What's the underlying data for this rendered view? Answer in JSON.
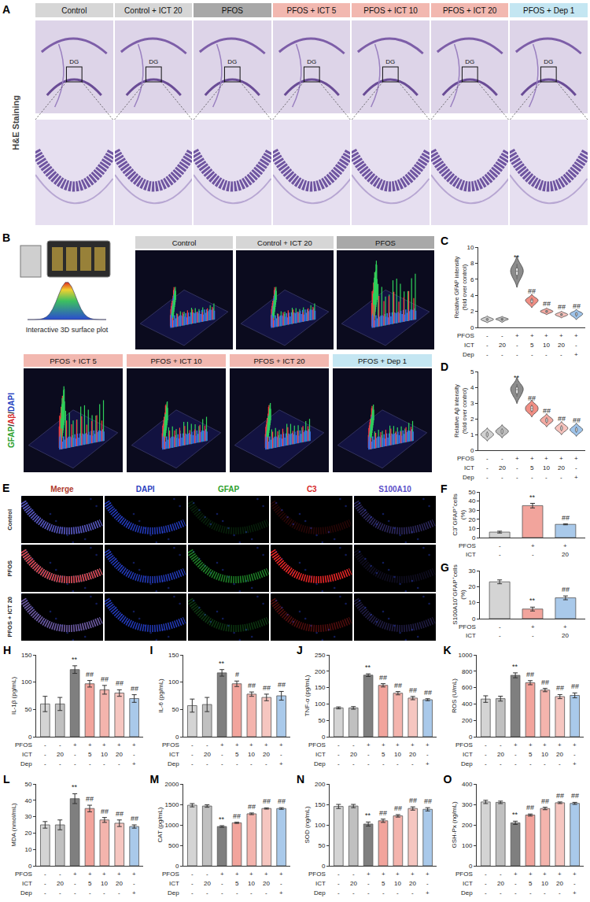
{
  "figure_A": {
    "panel": "A",
    "row_label": "H&E Staining",
    "region_label": "DG",
    "groups": [
      {
        "label": "Control",
        "color": "#d6d6d6"
      },
      {
        "label": "Control + ICT 20",
        "color": "#d6d6d6"
      },
      {
        "label": "PFOS",
        "color": "#a8a8a8"
      },
      {
        "label": "PFOS + ICT 5",
        "color": "#f2b8b0"
      },
      {
        "label": "PFOS + ICT 10",
        "color": "#f2b8b0"
      },
      {
        "label": "PFOS + ICT 20",
        "color": "#f2b8b0"
      },
      {
        "label": "PFOS + Dep 1",
        "color": "#c4e6f2"
      }
    ]
  },
  "figure_B": {
    "panel": "B",
    "icon_label": "Interactive 3D surface plot",
    "stain_label": "GFAP/Aβ/DAPI",
    "stain_colors": [
      "#2ca02c",
      "#d62728",
      "#1f3fbf"
    ],
    "groups": [
      {
        "label": "Control",
        "color": "#d6d6d6"
      },
      {
        "label": "Control + ICT 20",
        "color": "#d6d6d6"
      },
      {
        "label": "PFOS",
        "color": "#a8a8a8"
      },
      {
        "label": "PFOS + ICT 5",
        "color": "#f2b8b0"
      },
      {
        "label": "PFOS + ICT 10",
        "color": "#f2b8b0"
      },
      {
        "label": "PFOS + ICT 20",
        "color": "#f2b8b0"
      },
      {
        "label": "PFOS + Dep 1",
        "color": "#c4e6f2"
      }
    ]
  },
  "figure_E": {
    "panel": "E",
    "channels": [
      {
        "label": "Merge",
        "color": "#b03a2e"
      },
      {
        "label": "DAPI",
        "color": "#2b3fbf"
      },
      {
        "label": "GFAP",
        "color": "#2ca02c"
      },
      {
        "label": "C3",
        "color": "#d62728"
      },
      {
        "label": "S100A10",
        "color": "#5b4fc9"
      }
    ],
    "rows": [
      "Control",
      "PFOS",
      "PFOS + ICT 20"
    ]
  },
  "chart_data": [
    {
      "panel": "C",
      "type": "violin",
      "ylabel": "Relative GFAP intensity (fold over control)",
      "ylim": [
        0,
        10
      ],
      "yticks": [
        0,
        2,
        4,
        6,
        8,
        10
      ],
      "tick_labels": "y",
      "samples": [
        [
          0.8,
          0.9,
          1.0,
          1.0,
          1.1,
          1.2
        ],
        [
          0.8,
          0.95,
          1.0,
          1.05,
          1.1,
          1.2
        ],
        [
          6.0,
          6.5,
          6.9,
          7.1,
          7.4,
          7.9
        ],
        [
          2.9,
          3.1,
          3.3,
          3.4,
          3.5,
          3.7
        ],
        [
          1.8,
          1.9,
          2.0,
          2.0,
          2.1,
          2.2
        ],
        [
          1.4,
          1.5,
          1.6,
          1.6,
          1.7,
          1.8
        ],
        [
          1.3,
          1.5,
          1.6,
          1.7,
          1.8,
          1.9
        ]
      ],
      "colors": [
        "#d0d0d0",
        "#bdbdbd",
        "#8c8c8c",
        "#f08e84",
        "#f4aaa2",
        "#f7c3bd",
        "#9fc4ea"
      ],
      "significance": [
        null,
        null,
        "**",
        "##",
        "##",
        "##",
        "##"
      ],
      "conditions": [
        {
          "name": "PFOS",
          "values": [
            "-",
            "-",
            "+",
            "+",
            "+",
            "+",
            "+"
          ]
        },
        {
          "name": "ICT",
          "values": [
            "-",
            "20",
            "-",
            "5",
            "10",
            "20",
            "-"
          ]
        },
        {
          "name": "Dep",
          "values": [
            "-",
            "-",
            "-",
            "-",
            "-",
            "-",
            "+"
          ]
        }
      ]
    },
    {
      "panel": "D",
      "type": "violin",
      "ylabel": "Relative Aβ intensity (fold over control)",
      "ylim": [
        0,
        5
      ],
      "yticks": [
        0,
        1,
        2,
        3,
        4,
        5
      ],
      "tick_labels": "y",
      "samples": [
        [
          0.8,
          0.9,
          1.0,
          1.0,
          1.1,
          1.2
        ],
        [
          1.0,
          1.1,
          1.2,
          1.2,
          1.3,
          1.4
        ],
        [
          3.4,
          3.6,
          3.8,
          3.9,
          4.0,
          4.2
        ],
        [
          2.4,
          2.5,
          2.6,
          2.7,
          2.8,
          2.9
        ],
        [
          1.7,
          1.8,
          1.9,
          1.9,
          2.0,
          2.1
        ],
        [
          1.2,
          1.3,
          1.4,
          1.4,
          1.5,
          1.6
        ],
        [
          1.1,
          1.2,
          1.3,
          1.3,
          1.4,
          1.5
        ]
      ],
      "colors": [
        "#d0d0d0",
        "#bdbdbd",
        "#8c8c8c",
        "#f08e84",
        "#f4aaa2",
        "#f7c3bd",
        "#9fc4ea"
      ],
      "significance": [
        null,
        null,
        "**",
        "##",
        "##",
        "##",
        "##"
      ],
      "conditions": [
        {
          "name": "PFOS",
          "values": [
            "-",
            "-",
            "+",
            "+",
            "+",
            "+",
            "+"
          ]
        },
        {
          "name": "ICT",
          "values": [
            "-",
            "20",
            "-",
            "5",
            "10",
            "20",
            "-"
          ]
        },
        {
          "name": "Dep",
          "values": [
            "-",
            "-",
            "-",
            "-",
            "-",
            "-",
            "+"
          ]
        }
      ]
    },
    {
      "panel": "F",
      "type": "bar",
      "ylabel": "C3⁺GFAP⁺cells (%)",
      "ylim": [
        0,
        50
      ],
      "yticks": [
        0,
        10,
        20,
        30,
        40,
        50
      ],
      "tick_labels": "y",
      "values": [
        6,
        35,
        14.5
      ],
      "errors": [
        1,
        2.5,
        0.5
      ],
      "colors": [
        "#d4d4d4",
        "#f2a49c",
        "#a9c9ea"
      ],
      "significance": [
        null,
        "**",
        "##"
      ],
      "conditions": [
        {
          "name": "PFOS",
          "values": [
            "-",
            "+",
            "+"
          ]
        },
        {
          "name": "ICT",
          "values": [
            "-",
            "-",
            "20"
          ]
        }
      ]
    },
    {
      "panel": "G",
      "type": "bar",
      "ylabel": "S100A10⁺GFAP⁺cells (%)",
      "ylim": [
        0,
        30
      ],
      "yticks": [
        0,
        10,
        20,
        30
      ],
      "tick_labels": "y",
      "values": [
        23,
        6,
        13
      ],
      "errors": [
        1.2,
        1.2,
        1.2
      ],
      "colors": [
        "#d4d4d4",
        "#f2a49c",
        "#a9c9ea"
      ],
      "significance": [
        null,
        "**",
        "##"
      ],
      "conditions": [
        {
          "name": "PFOS",
          "values": [
            "-",
            "+",
            "+"
          ]
        },
        {
          "name": "ICT",
          "values": [
            "-",
            "-",
            "20"
          ]
        }
      ]
    },
    {
      "panel": "H",
      "type": "bar",
      "ylabel": "IL-1β (pg/mL)",
      "ylim": [
        0,
        150
      ],
      "yticks": [
        0,
        50,
        100,
        150
      ],
      "tick_labels": "y",
      "values": [
        60,
        60,
        123,
        97,
        86,
        80,
        70
      ],
      "errors": [
        14,
        12,
        7,
        6,
        8,
        6,
        7
      ],
      "colors": [
        "#d4d4d4",
        "#c0c0c0",
        "#7f7f7f",
        "#f2a49c",
        "#f4b4ad",
        "#f6c6c0",
        "#a9c9ea"
      ],
      "significance": [
        null,
        null,
        "**",
        "##",
        "##",
        "##",
        "##"
      ],
      "conditions": [
        {
          "name": "PFOS",
          "values": [
            "-",
            "-",
            "+",
            "+",
            "+",
            "+",
            "+"
          ]
        },
        {
          "name": "ICT",
          "values": [
            "-",
            "20",
            "-",
            "5",
            "10",
            "20",
            "-"
          ]
        },
        {
          "name": "Dep",
          "values": [
            "-",
            "-",
            "-",
            "-",
            "-",
            "-",
            "+"
          ]
        }
      ]
    },
    {
      "panel": "I",
      "type": "bar",
      "ylabel": "IL-6 (pg/mL)",
      "ylim": [
        0,
        150
      ],
      "yticks": [
        0,
        50,
        100,
        150
      ],
      "tick_labels": "y",
      "values": [
        57,
        59,
        117,
        97,
        78,
        72,
        75
      ],
      "errors": [
        12,
        13,
        6,
        5,
        4,
        6,
        8
      ],
      "colors": [
        "#d4d4d4",
        "#c0c0c0",
        "#7f7f7f",
        "#f2a49c",
        "#f4b4ad",
        "#f6c6c0",
        "#a9c9ea"
      ],
      "significance": [
        null,
        null,
        "**",
        "#",
        "##",
        "##",
        "##"
      ],
      "conditions": [
        {
          "name": "PFOS",
          "values": [
            "-",
            "-",
            "+",
            "+",
            "+",
            "+",
            "+"
          ]
        },
        {
          "name": "ICT",
          "values": [
            "-",
            "20",
            "-",
            "5",
            "10",
            "20",
            "-"
          ]
        },
        {
          "name": "Dep",
          "values": [
            "-",
            "-",
            "-",
            "-",
            "-",
            "-",
            "+"
          ]
        }
      ]
    },
    {
      "panel": "J",
      "type": "bar",
      "ylabel": "TNF-α (pg/mL)",
      "ylim": [
        0,
        250
      ],
      "yticks": [
        0,
        50,
        100,
        150,
        200,
        250
      ],
      "tick_labels": "y",
      "values": [
        88,
        88,
        188,
        157,
        133,
        118,
        113
      ],
      "errors": [
        3,
        4,
        4,
        5,
        5,
        5,
        3
      ],
      "colors": [
        "#d4d4d4",
        "#c0c0c0",
        "#7f7f7f",
        "#f2a49c",
        "#f4b4ad",
        "#f6c6c0",
        "#a9c9ea"
      ],
      "significance": [
        null,
        null,
        "**",
        "##",
        "##",
        "##",
        "##"
      ],
      "conditions": [
        {
          "name": "PFOS",
          "values": [
            "-",
            "-",
            "+",
            "+",
            "+",
            "+",
            "+"
          ]
        },
        {
          "name": "ICT",
          "values": [
            "-",
            "20",
            "-",
            "5",
            "10",
            "20",
            "-"
          ]
        },
        {
          "name": "Dep",
          "values": [
            "-",
            "-",
            "-",
            "-",
            "-",
            "-",
            "+"
          ]
        }
      ]
    },
    {
      "panel": "K",
      "type": "bar",
      "ylabel": "ROS (U/mL)",
      "ylim": [
        0,
        1000
      ],
      "yticks": [
        0,
        200,
        400,
        600,
        800,
        1000
      ],
      "tick_labels": "y",
      "values": [
        460,
        465,
        750,
        660,
        570,
        490,
        505
      ],
      "errors": [
        40,
        30,
        30,
        25,
        20,
        25,
        30
      ],
      "colors": [
        "#d4d4d4",
        "#c0c0c0",
        "#7f7f7f",
        "#f2a49c",
        "#f4b4ad",
        "#f6c6c0",
        "#a9c9ea"
      ],
      "significance": [
        null,
        null,
        "**",
        "##",
        "##",
        "##",
        "##"
      ],
      "conditions": [
        {
          "name": "PFOS",
          "values": [
            "-",
            "-",
            "+",
            "+",
            "+",
            "+",
            "+"
          ]
        },
        {
          "name": "ICT",
          "values": [
            "-",
            "20",
            "-",
            "5",
            "10",
            "20",
            "-"
          ]
        },
        {
          "name": "Dep",
          "values": [
            "-",
            "-",
            "-",
            "-",
            "-",
            "-",
            "+"
          ]
        }
      ]
    },
    {
      "panel": "L",
      "type": "bar",
      "ylabel": "MDA (nmol/mL)",
      "ylim": [
        0,
        50
      ],
      "yticks": [
        0,
        10,
        20,
        30,
        40,
        50
      ],
      "tick_labels": "y",
      "values": [
        25,
        25,
        41,
        35,
        28,
        26,
        24
      ],
      "errors": [
        2,
        3,
        3,
        2,
        1.5,
        2,
        1
      ],
      "colors": [
        "#d4d4d4",
        "#c0c0c0",
        "#7f7f7f",
        "#f2a49c",
        "#f4b4ad",
        "#f6c6c0",
        "#a9c9ea"
      ],
      "significance": [
        null,
        null,
        "**",
        "##",
        "##",
        "##",
        "##"
      ],
      "conditions": [
        {
          "name": "PFOS",
          "values": [
            "-",
            "-",
            "+",
            "+",
            "+",
            "+",
            "+"
          ]
        },
        {
          "name": "ICT",
          "values": [
            "-",
            "20",
            "-",
            "5",
            "10",
            "20",
            "-"
          ]
        },
        {
          "name": "Dep",
          "values": [
            "-",
            "-",
            "-",
            "-",
            "-",
            "-",
            "+"
          ]
        }
      ]
    },
    {
      "panel": "M",
      "type": "bar",
      "ylabel": "CAT (pg/mL)",
      "ylim": [
        0,
        2000
      ],
      "yticks": [
        0,
        500,
        1000,
        1500,
        2000
      ],
      "tick_labels": "y",
      "values": [
        1480,
        1460,
        960,
        1050,
        1270,
        1400,
        1400
      ],
      "errors": [
        40,
        30,
        20,
        15,
        20,
        15,
        20
      ],
      "colors": [
        "#d4d4d4",
        "#c0c0c0",
        "#7f7f7f",
        "#f2a49c",
        "#f4b4ad",
        "#f6c6c0",
        "#a9c9ea"
      ],
      "significance": [
        null,
        null,
        "**",
        "##",
        "##",
        "##",
        "##"
      ],
      "conditions": [
        {
          "name": "PFOS",
          "values": [
            "-",
            "-",
            "+",
            "+",
            "+",
            "+",
            "+"
          ]
        },
        {
          "name": "ICT",
          "values": [
            "-",
            "20",
            "-",
            "5",
            "10",
            "20",
            "-"
          ]
        },
        {
          "name": "Dep",
          "values": [
            "-",
            "-",
            "-",
            "-",
            "-",
            "-",
            "+"
          ]
        }
      ]
    },
    {
      "panel": "N",
      "type": "bar",
      "ylabel": "SOD (ng/mL)",
      "ylim": [
        0,
        200
      ],
      "yticks": [
        0,
        50,
        100,
        150,
        200
      ],
      "tick_labels": "y",
      "values": [
        145,
        146,
        102,
        110,
        122,
        140,
        138
      ],
      "errors": [
        5,
        4,
        5,
        4,
        3,
        4,
        4
      ],
      "colors": [
        "#d4d4d4",
        "#c0c0c0",
        "#7f7f7f",
        "#f2a49c",
        "#f4b4ad",
        "#f6c6c0",
        "#a9c9ea"
      ],
      "significance": [
        null,
        null,
        "**",
        "##",
        "##",
        "##",
        "##"
      ],
      "conditions": [
        {
          "name": "PFOS",
          "values": [
            "-",
            "-",
            "+",
            "+",
            "+",
            "+",
            "+"
          ]
        },
        {
          "name": "ICT",
          "values": [
            "-",
            "20",
            "-",
            "5",
            "10",
            "20",
            "-"
          ]
        },
        {
          "name": "Dep",
          "values": [
            "-",
            "-",
            "-",
            "-",
            "-",
            "-",
            "+"
          ]
        }
      ]
    },
    {
      "panel": "O",
      "type": "bar",
      "ylabel": "GSH-Px (ng/mL)",
      "ylim": [
        0,
        400
      ],
      "yticks": [
        0,
        100,
        200,
        300,
        400
      ],
      "tick_labels": "y",
      "values": [
        312,
        310,
        210,
        248,
        280,
        308,
        305
      ],
      "errors": [
        8,
        6,
        8,
        5,
        6,
        4,
        5
      ],
      "colors": [
        "#d4d4d4",
        "#c0c0c0",
        "#7f7f7f",
        "#f2a49c",
        "#f4b4ad",
        "#f6c6c0",
        "#a9c9ea"
      ],
      "significance": [
        null,
        null,
        "**",
        "##",
        "##",
        "##",
        "##"
      ],
      "conditions": [
        {
          "name": "PFOS",
          "values": [
            "-",
            "-",
            "+",
            "+",
            "+",
            "+",
            "+"
          ]
        },
        {
          "name": "ICT",
          "values": [
            "-",
            "20",
            "-",
            "5",
            "10",
            "20",
            "-"
          ]
        },
        {
          "name": "Dep",
          "values": [
            "-",
            "-",
            "-",
            "-",
            "-",
            "-",
            "+"
          ]
        }
      ]
    }
  ]
}
